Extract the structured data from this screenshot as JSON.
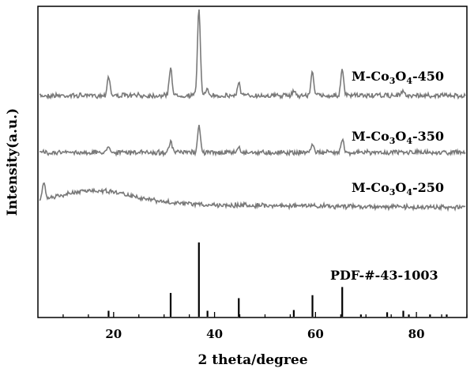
{
  "chart_data": {
    "type": "line",
    "title": "",
    "xlabel": "2 theta/degree",
    "ylabel": "Intensity(a.u.)",
    "xlim": [
      5,
      90
    ],
    "x_ticks": [
      20,
      40,
      60,
      80
    ],
    "grid": false,
    "y_tick_labels": false,
    "series": [
      {
        "name_parts": [
          "M-Co",
          "3",
          "O",
          "4",
          "-450"
        ],
        "baseline": 0.0,
        "hump": [],
        "peaks": [
          [
            19.0,
            0.22
          ],
          [
            31.3,
            0.32
          ],
          [
            36.9,
            1.0
          ],
          [
            38.6,
            0.06
          ],
          [
            44.8,
            0.14
          ],
          [
            55.7,
            0.06
          ],
          [
            59.4,
            0.27
          ],
          [
            65.3,
            0.28
          ],
          [
            77.3,
            0.05
          ]
        ]
      },
      {
        "name_parts": [
          "M-Co",
          "3",
          "O",
          "4",
          "-350"
        ],
        "baseline": 0.0,
        "hump": [],
        "peaks": [
          [
            19.0,
            0.08
          ],
          [
            31.3,
            0.12
          ],
          [
            36.9,
            0.3
          ],
          [
            44.8,
            0.06
          ],
          [
            59.4,
            0.1
          ],
          [
            65.3,
            0.16
          ]
        ]
      },
      {
        "name_parts": [
          "M-Co",
          "3",
          "O",
          "4",
          "-250"
        ],
        "baseline": 0.0,
        "hump": [
          [
            17.0,
            0.15,
            7.0
          ]
        ],
        "peaks": [
          [
            6.2,
            0.18
          ]
        ]
      }
    ],
    "reference": {
      "name": "PDF-#-43-1003",
      "sticks": [
        [
          19.0,
          0.08
        ],
        [
          31.3,
          0.32
        ],
        [
          36.9,
          1.0
        ],
        [
          38.6,
          0.08
        ],
        [
          44.8,
          0.25
        ],
        [
          55.7,
          0.09
        ],
        [
          59.4,
          0.29
        ],
        [
          65.3,
          0.4
        ],
        [
          69.0,
          0.03
        ],
        [
          74.2,
          0.06
        ],
        [
          77.4,
          0.08
        ],
        [
          78.5,
          0.03
        ],
        [
          82.7,
          0.03
        ],
        [
          86.0,
          0.03
        ]
      ]
    }
  }
}
